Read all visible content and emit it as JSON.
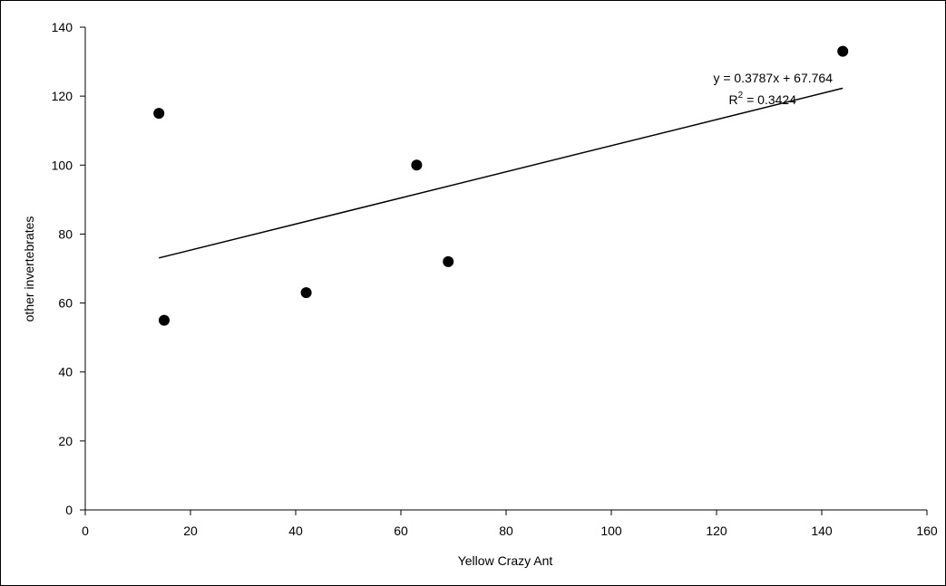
{
  "chart_data": {
    "type": "scatter",
    "xlabel": "Yellow Crazy Ant",
    "ylabel": "other invertebrates",
    "xlim": [
      0,
      160
    ],
    "ylim": [
      0,
      140
    ],
    "xticks": [
      0,
      20,
      40,
      60,
      80,
      100,
      120,
      140,
      160
    ],
    "yticks": [
      0,
      20,
      40,
      60,
      80,
      100,
      120,
      140
    ],
    "xtick_labels": [
      "0",
      "20",
      "40",
      "60",
      "80",
      "100",
      "120",
      "140",
      "160"
    ],
    "ytick_labels": [
      "0",
      "20",
      "40",
      "60",
      "80",
      "100",
      "120",
      "140"
    ],
    "grid": false,
    "legend": "none",
    "points": [
      {
        "x": 14,
        "y": 115
      },
      {
        "x": 15,
        "y": 55
      },
      {
        "x": 42,
        "y": 63
      },
      {
        "x": 63,
        "y": 100
      },
      {
        "x": 69,
        "y": 72
      },
      {
        "x": 144,
        "y": 133
      }
    ],
    "trendline": {
      "type": "linear",
      "slope": 0.3787,
      "intercept": 67.764,
      "x_range": [
        14,
        144
      ],
      "equation_label": "y = 0.3787x + 67.764",
      "r2_prefix": "R",
      "r2_sup": "2",
      "r2_suffix": " = 0.3424"
    },
    "colors": {
      "marker": "#000000",
      "line": "#000000",
      "axis": "#000000"
    }
  }
}
